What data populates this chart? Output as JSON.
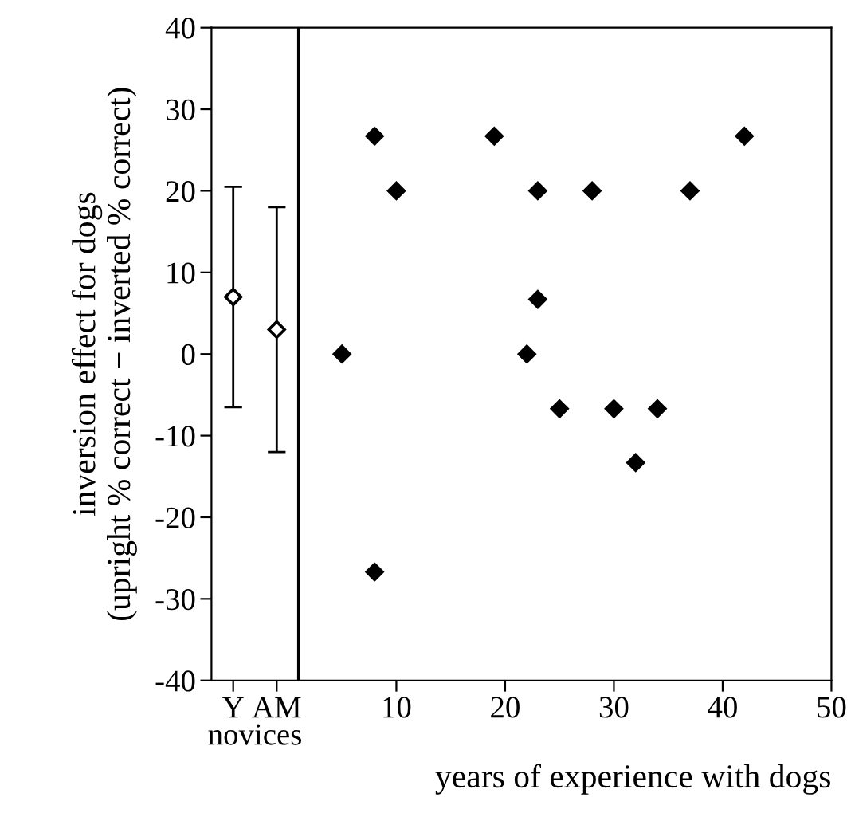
{
  "chart_data": {
    "type": "scatter",
    "xlabel": "years of experience with dogs",
    "ylabel": "inversion effect for dogs\n(upright % correct − inverted % correct)",
    "series": [
      {
        "color": "#ffffff",
        "x": [
          -5,
          -1
        ],
        "values": [
          7,
          3
        ],
        "errors": [
          13.5,
          15
        ]
      },
      {
        "color": "#000000",
        "x": [
          5,
          8,
          8,
          10,
          19,
          22,
          23,
          23,
          25,
          28,
          30,
          32,
          34,
          37,
          42
        ],
        "values": [
          0,
          26.7,
          -26.7,
          20,
          26.7,
          0,
          20,
          6.7,
          -6.7,
          20,
          -6.7,
          -13.3,
          -6.7,
          20,
          26.7
        ]
      }
    ],
    "xlim": [
      -7,
      50
    ],
    "ylim": [
      -40,
      40
    ],
    "xticks": [
      {
        "value": -5,
        "label": "Y"
      },
      {
        "value": -1,
        "label": "AM"
      },
      10,
      20,
      30,
      40,
      50
    ],
    "yticks": [
      -40,
      -30,
      -20,
      -10,
      0,
      10,
      20,
      30,
      40
    ],
    "ref_lines": [
      {
        "axis": "x",
        "value": 1,
        "color": "#000000"
      }
    ],
    "annotations": [
      "novices"
    ],
    "marker": "diamond",
    "grid": false,
    "legend": false
  }
}
